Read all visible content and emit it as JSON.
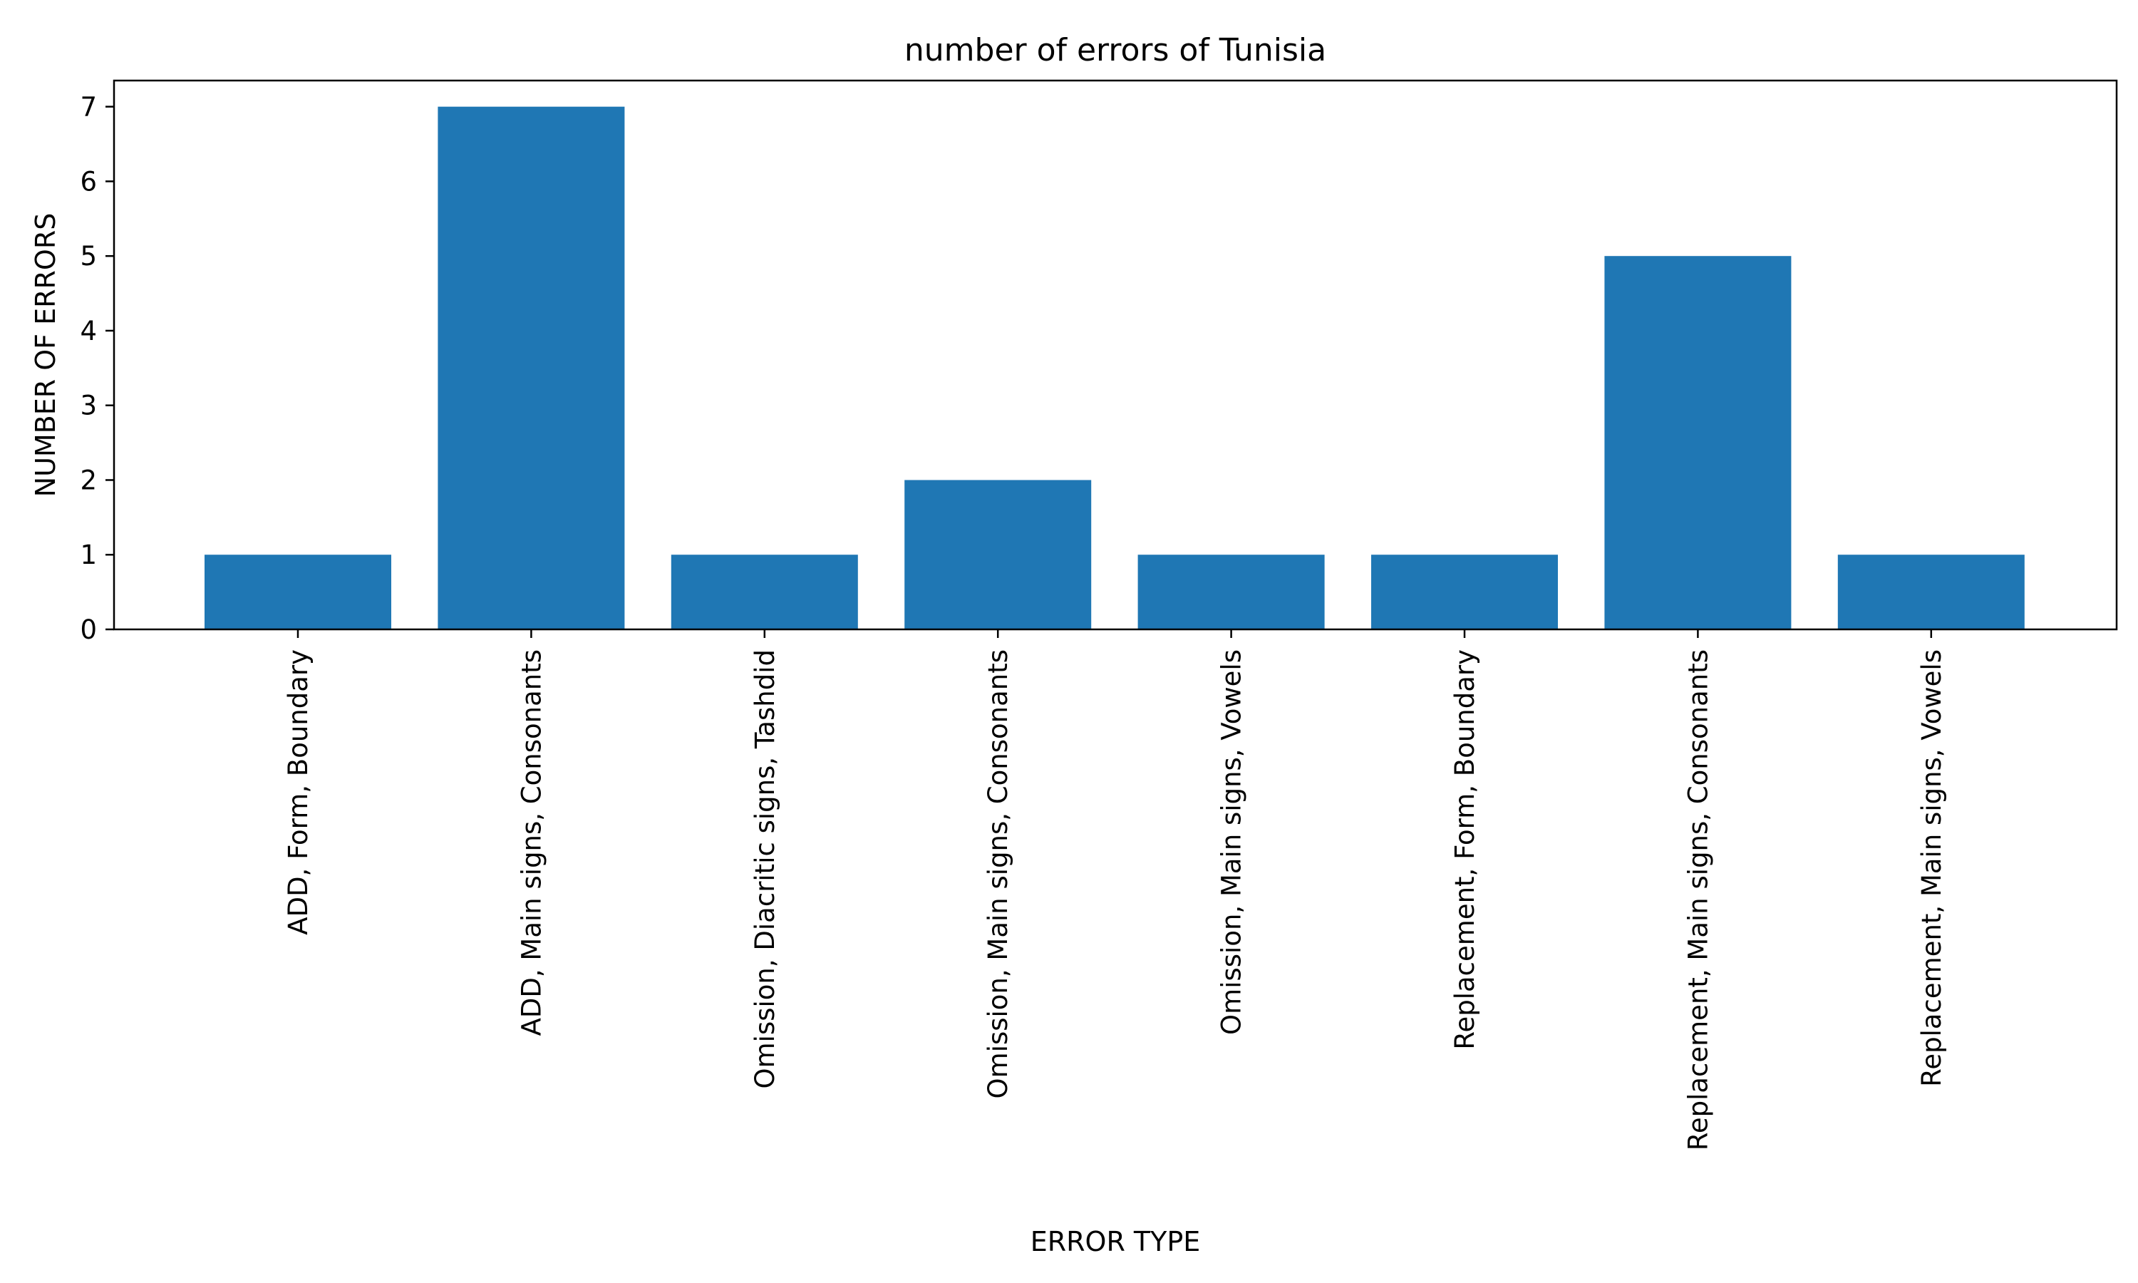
{
  "chart_data": {
    "type": "bar",
    "title": "number of errors of Tunisia",
    "xlabel": "ERROR TYPE",
    "ylabel": "NUMBER OF ERRORS",
    "categories": [
      "ADD, Form, Boundary",
      "ADD, Main signs, Consonants",
      "Omission, Diacritic signs, Tashdid",
      "Omission, Main signs, Consonants",
      "Omission, Main signs, Vowels",
      "Replacement, Form, Boundary",
      "Replacement, Main signs, Consonants",
      "Replacement, Main signs, Vowels"
    ],
    "values": [
      1,
      7,
      1,
      2,
      1,
      1,
      5,
      1
    ],
    "ylim": [
      0,
      7.35
    ],
    "yticks": [
      0,
      1,
      2,
      3,
      4,
      5,
      6,
      7
    ],
    "grid": false,
    "legend": "none",
    "bar_color": "#1f77b4"
  }
}
